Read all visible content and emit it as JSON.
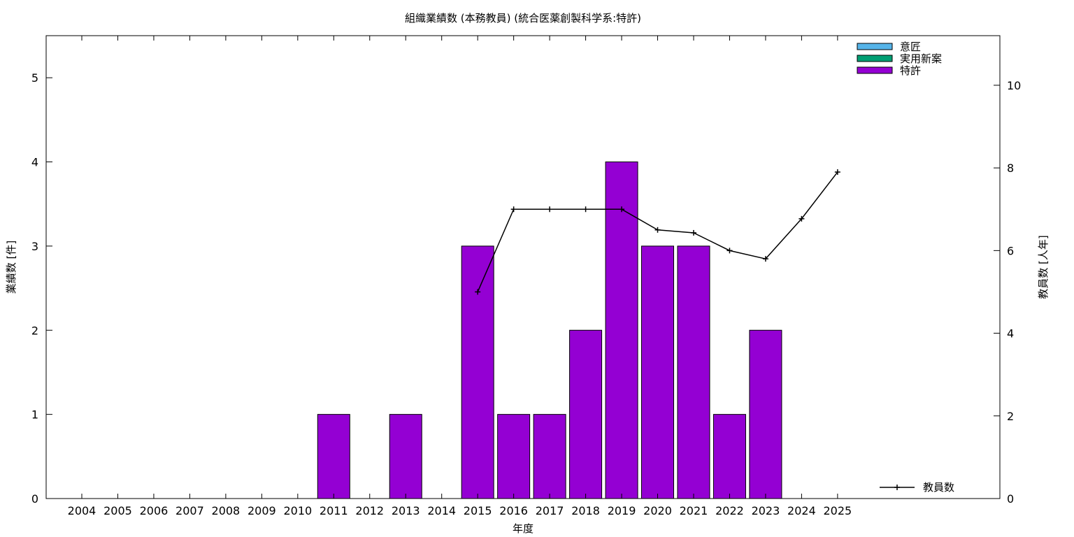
{
  "chart_data": {
    "type": "bar",
    "title": "組織業績数 (本務教員) (統合医薬創製科学系:特許)",
    "xlabel": "年度",
    "ylabel": "業績数 [件]",
    "y2label": "教員数 [人年]",
    "categories": [
      "2004",
      "2005",
      "2006",
      "2007",
      "2008",
      "2009",
      "2010",
      "2011",
      "2012",
      "2013",
      "2014",
      "2015",
      "2016",
      "2017",
      "2018",
      "2019",
      "2020",
      "2021",
      "2022",
      "2023",
      "2024",
      "2025"
    ],
    "ylim": [
      0,
      5.5
    ],
    "yticks": [
      0,
      1,
      2,
      3,
      4,
      5
    ],
    "y2lim": [
      0,
      11.2
    ],
    "y2ticks": [
      0,
      2,
      4,
      6,
      8,
      10
    ],
    "legend_position": "top-right",
    "grid": false,
    "series": [
      {
        "name": "意匠",
        "color": "#56b4e9",
        "axis": "left",
        "values": [
          0,
          0,
          0,
          0,
          0,
          0,
          0,
          0,
          0,
          0,
          0,
          0,
          0,
          0,
          0,
          0,
          0,
          0,
          0,
          0,
          0,
          0
        ]
      },
      {
        "name": "実用新案",
        "color": "#009e73",
        "axis": "left",
        "values": [
          0,
          0,
          0,
          0,
          0,
          0,
          0,
          0,
          0,
          0,
          0,
          0,
          0,
          0,
          0,
          0,
          0,
          0,
          0,
          0,
          0,
          0
        ]
      },
      {
        "name": "特許",
        "color": "#9400d3",
        "axis": "left",
        "values": [
          0,
          0,
          0,
          0,
          0,
          0,
          0,
          1,
          0,
          1,
          0,
          3,
          1,
          1,
          2,
          4,
          3,
          3,
          1,
          2,
          0,
          0
        ]
      }
    ],
    "line_series": {
      "name": "教員数",
      "color": "#000000",
      "axis": "right",
      "legend_position": "bottom-right",
      "x": [
        "2015",
        "2016",
        "2017",
        "2018",
        "2019",
        "2020",
        "2021",
        "2022",
        "2023",
        "2024",
        "2025"
      ],
      "values": [
        5.0,
        7.0,
        7.0,
        7.0,
        7.0,
        6.5,
        6.43,
        6.0,
        5.8,
        6.77,
        7.9
      ]
    }
  }
}
